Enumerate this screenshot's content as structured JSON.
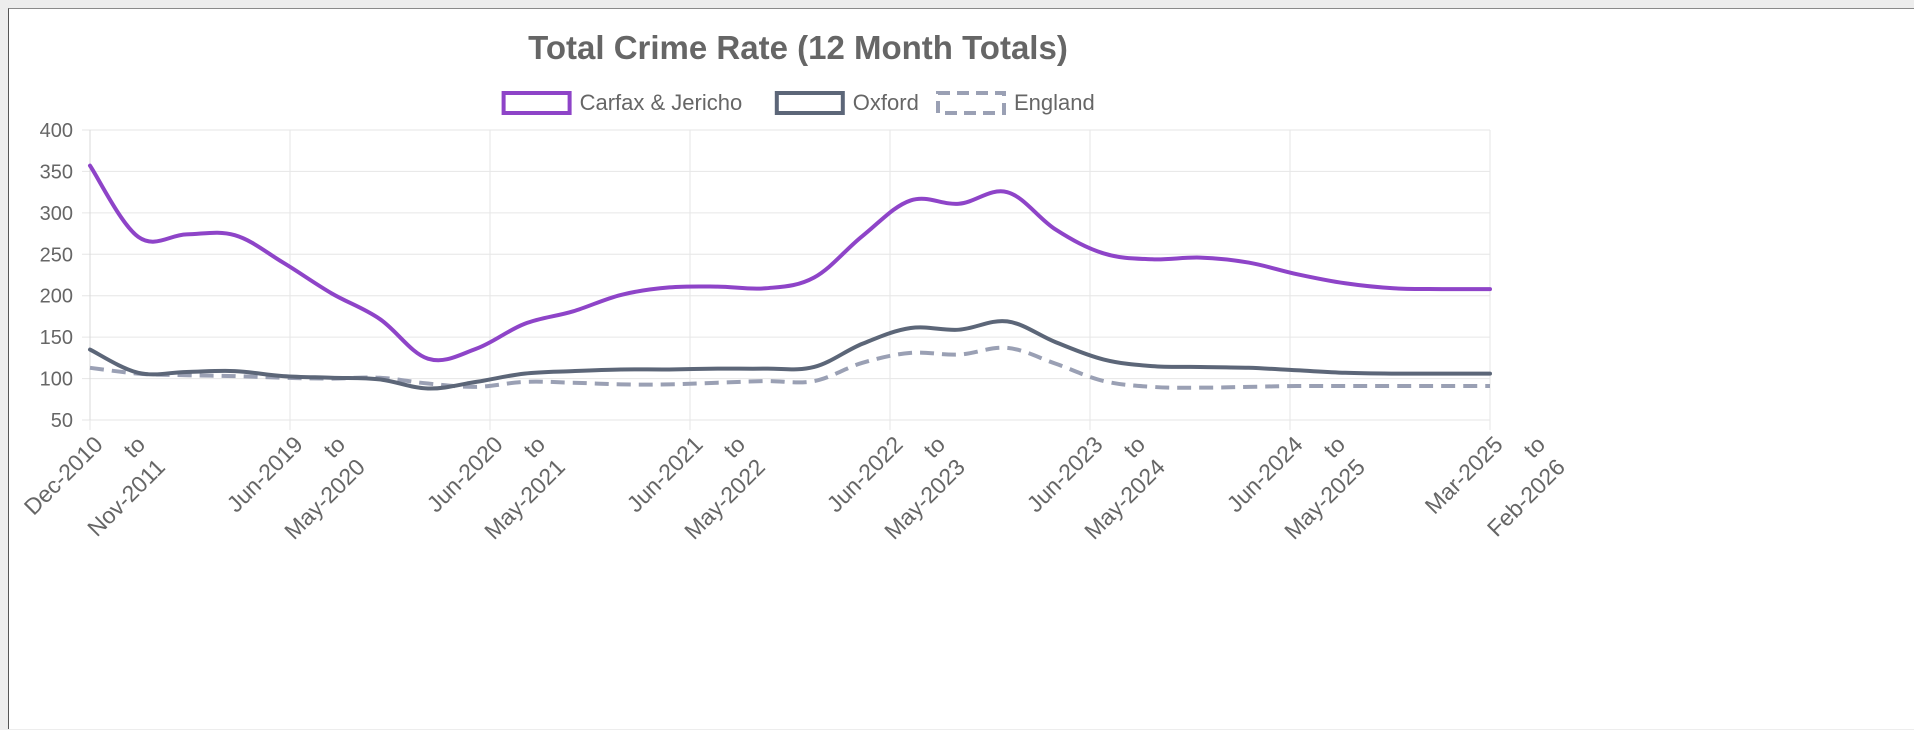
{
  "chart_data": {
    "type": "line",
    "title": "Total Crime Rate (12 Month Totals)",
    "xlabel": "",
    "ylabel": "",
    "ylim": [
      50,
      400
    ],
    "yticks": [
      50,
      100,
      150,
      200,
      250,
      300,
      350,
      400
    ],
    "grid": true,
    "legend_position": "top",
    "x_tick_labels": [
      {
        "line1": "Dec-2010",
        "line2": "to",
        "line3": "Nov-2011"
      },
      {
        "line1": "Jun-2019",
        "line2": "to",
        "line3": "May-2020"
      },
      {
        "line1": "Jun-2020",
        "line2": "to",
        "line3": "May-2021"
      },
      {
        "line1": "Jun-2021",
        "line2": "to",
        "line3": "May-2022"
      },
      {
        "line1": "Jun-2022",
        "line2": "to",
        "line3": "May-2023"
      },
      {
        "line1": "Jun-2023",
        "line2": "to",
        "line3": "May-2024"
      },
      {
        "line1": "Jun-2024",
        "line2": "to",
        "line3": "May-2025"
      },
      {
        "line1": "Mar-2025",
        "line2": "to",
        "line3": "Feb-2026"
      }
    ],
    "series": [
      {
        "name": "Carfax & Jericho",
        "color": "#8e44c8",
        "dashed": false,
        "values": [
          357,
          271,
          274,
          273,
          240,
          203,
          172,
          124,
          136,
          166,
          181,
          201,
          210,
          211,
          209,
          222,
          272,
          315,
          311,
          325,
          280,
          251,
          244,
          246,
          240,
          226,
          215,
          209,
          208,
          208
        ]
      },
      {
        "name": "Oxford",
        "color": "#5c6678",
        "dashed": false,
        "values": [
          135,
          107,
          108,
          109,
          103,
          101,
          99,
          88,
          96,
          106,
          109,
          111,
          111,
          112,
          112,
          114,
          142,
          161,
          159,
          169,
          144,
          123,
          115,
          114,
          113,
          110,
          107,
          106,
          106,
          106
        ]
      },
      {
        "name": "England",
        "color": "#9aa0b4",
        "dashed": true,
        "values": [
          113,
          106,
          104,
          103,
          101,
          100,
          101,
          94,
          90,
          96,
          95,
          93,
          93,
          95,
          97,
          97,
          119,
          131,
          129,
          137,
          118,
          97,
          90,
          89,
          90,
          91,
          91,
          91,
          91,
          91
        ]
      }
    ]
  }
}
